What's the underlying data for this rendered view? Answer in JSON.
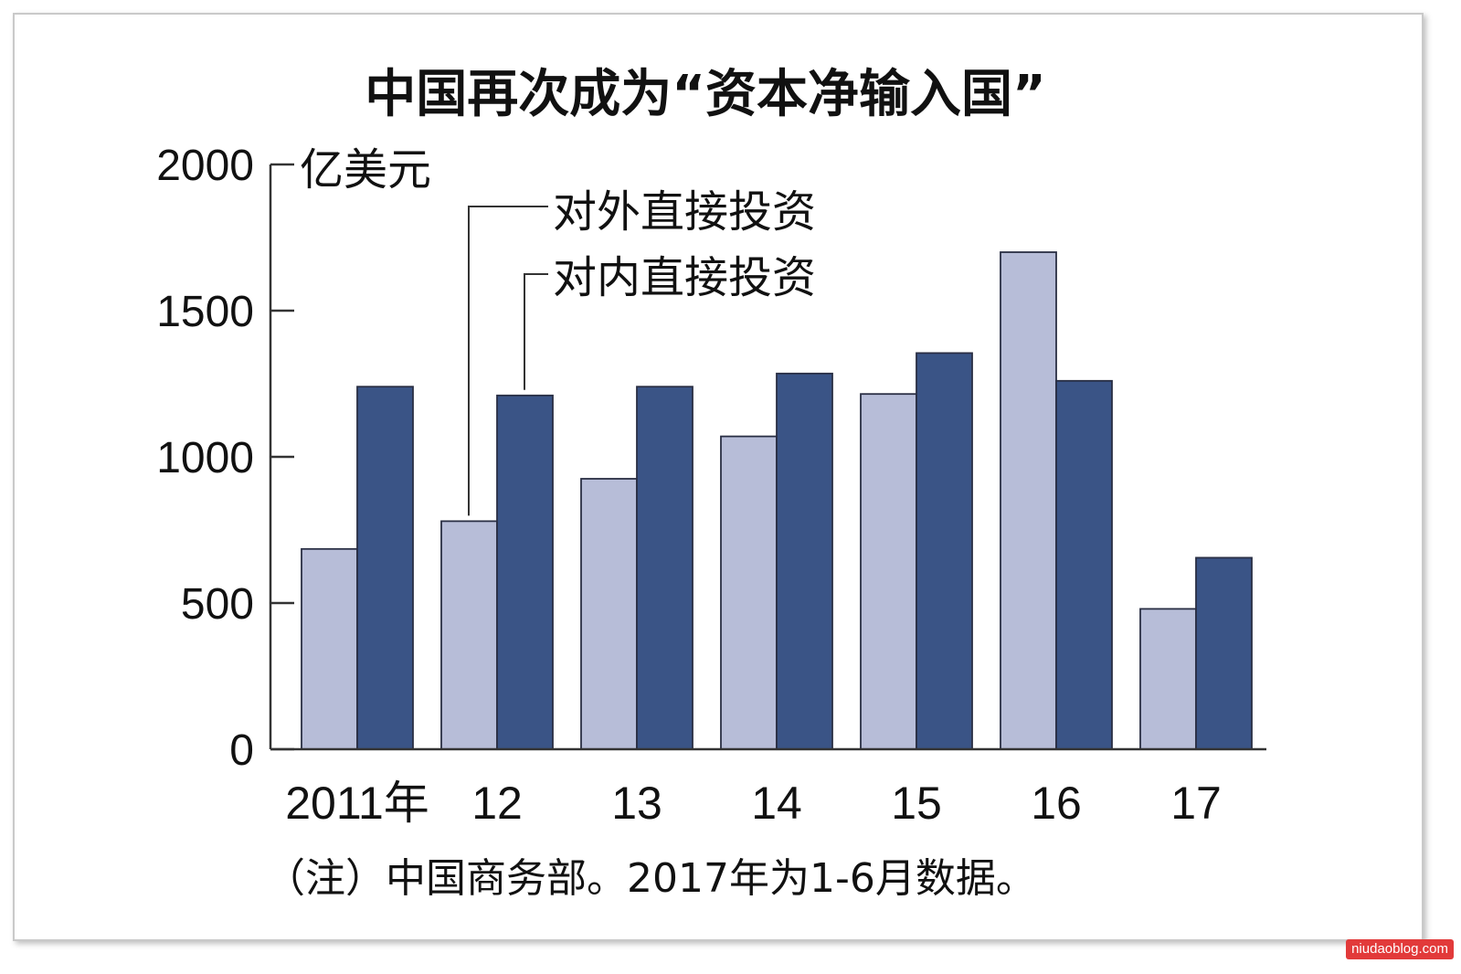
{
  "chart_data": {
    "type": "bar",
    "title": "中国再次成为“资本净输入国”",
    "unit": "亿美元",
    "categories": [
      "2011年",
      "12",
      "13",
      "14",
      "15",
      "16",
      "17"
    ],
    "series": [
      {
        "name": "对外直接投资",
        "values": [
          685,
          780,
          925,
          1070,
          1215,
          1700,
          480
        ],
        "color": "#b7bdd8"
      },
      {
        "name": "对内直接投资",
        "values": [
          1240,
          1210,
          1240,
          1285,
          1355,
          1260,
          655
        ],
        "color": "#3a5486"
      }
    ],
    "ylim": [
      0,
      2000
    ],
    "yticks": [
      0,
      500,
      1000,
      1500,
      2000
    ],
    "grid": false,
    "note": "（注）中国商务部。2017年为1-6月数据。"
  },
  "watermark": "niudaoblog.com"
}
